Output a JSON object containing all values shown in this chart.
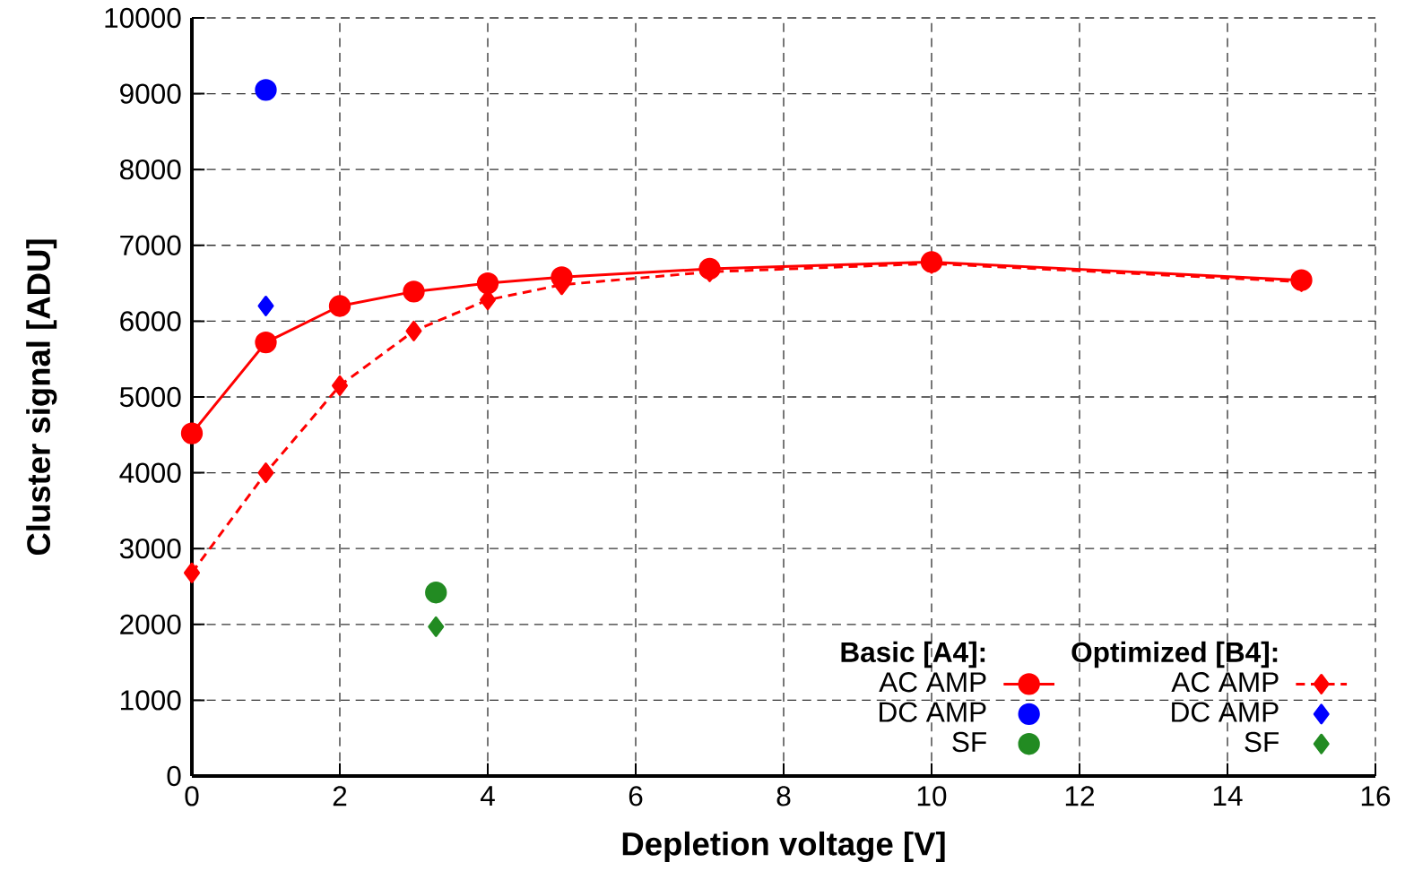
{
  "chart_data": {
    "type": "line",
    "xlabel": "Depletion voltage [V]",
    "ylabel": "Cluster signal [ADU]",
    "xlim": [
      0,
      16
    ],
    "ylim": [
      0,
      10000
    ],
    "xticks": [
      0,
      2,
      4,
      6,
      8,
      10,
      12,
      14,
      16
    ],
    "yticks": [
      0,
      1000,
      2000,
      3000,
      4000,
      5000,
      6000,
      7000,
      8000,
      9000,
      10000
    ],
    "grid": true,
    "legend": "bottom right",
    "annotations": [
      "Basic [A4]:",
      "Optimized [B4]:"
    ],
    "series": [
      {
        "name": "AC AMP",
        "type": "line",
        "color": "#ff0000",
        "marker": "circle",
        "line_style": "solid",
        "x": [
          0,
          1,
          2,
          3,
          4,
          5,
          7,
          10,
          15
        ],
        "values": [
          4520,
          5720,
          6200,
          6390,
          6500,
          6580,
          6690,
          6780,
          6540
        ]
      },
      {
        "name": "DC AMP",
        "type": "scatter",
        "color": "#0000ff",
        "marker": "circle",
        "x": [
          1
        ],
        "values": [
          9050
        ]
      },
      {
        "name": "SF",
        "type": "scatter",
        "color": "#228b22",
        "marker": "circle",
        "x": [
          3.3
        ],
        "values": [
          2420
        ]
      },
      {
        "name": "AC AMP",
        "type": "line",
        "color": "#ff0000",
        "marker": "diamond",
        "line_style": "dotted",
        "x": [
          0,
          1,
          2,
          3,
          4,
          5,
          7,
          10,
          15
        ],
        "values": [
          2680,
          4000,
          5150,
          5870,
          6280,
          6480,
          6650,
          6760,
          6520
        ]
      },
      {
        "name": "DC AMP",
        "type": "scatter",
        "color": "#0000ff",
        "marker": "diamond",
        "x": [
          1
        ],
        "values": [
          6200
        ]
      },
      {
        "name": "SF",
        "type": "scatter",
        "color": "#228b22",
        "marker": "diamond",
        "x": [
          3.3
        ],
        "values": [
          1970
        ]
      }
    ]
  }
}
